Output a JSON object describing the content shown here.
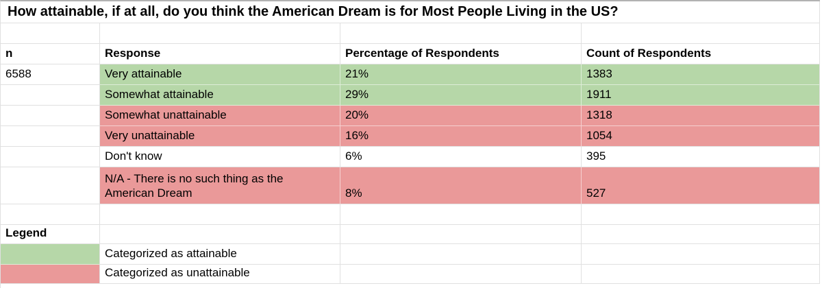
{
  "title": "How attainable, if at all, do you think the American Dream is for Most People Living in the US?",
  "table": {
    "headers": [
      "n",
      "Response",
      "Percentage of Respondents",
      "Count of Respondents"
    ],
    "n_value": "6588",
    "rows": [
      {
        "response": "Very attainable",
        "percentage": "21%",
        "count": "1383",
        "category": "attainable"
      },
      {
        "response": "Somewhat attainable",
        "percentage": "29%",
        "count": "1911",
        "category": "attainable"
      },
      {
        "response": "Somewhat unattainable",
        "percentage": "20%",
        "count": "1318",
        "category": "unattainable"
      },
      {
        "response": "Very unattainable",
        "percentage": "16%",
        "count": "1054",
        "category": "unattainable"
      },
      {
        "response": "Don't know",
        "percentage": "6%",
        "count": "395",
        "category": "uncategorized"
      },
      {
        "response": "N/A - There is no such thing as the American Dream",
        "percentage": "8%",
        "count": "527",
        "category": "unattainable"
      }
    ]
  },
  "legend": {
    "label": "Legend",
    "items": [
      {
        "category": "attainable",
        "label": "Categorized as attainable"
      },
      {
        "category": "unattainable",
        "label": "Categorized as unattainable"
      }
    ]
  },
  "colors": {
    "attainable_fill": "#b6d7a8",
    "unattainable_fill": "#ea9999"
  }
}
